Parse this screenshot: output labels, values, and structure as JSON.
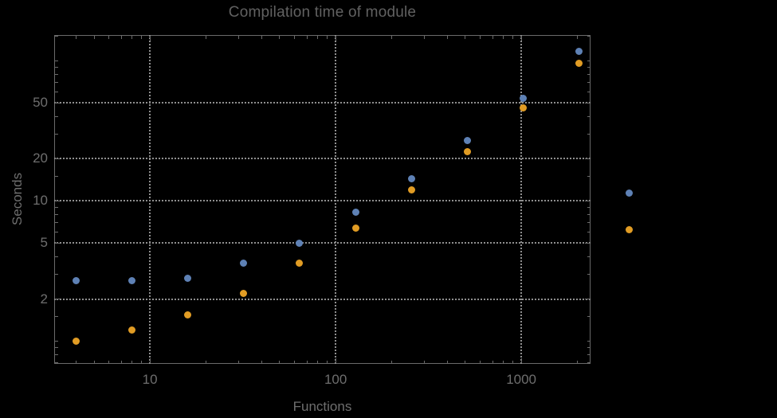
{
  "chart_data": {
    "type": "scatter",
    "title": "Compilation time of module",
    "xlabel": "Functions",
    "ylabel": "Seconds",
    "x_scale": "log",
    "y_scale": "log",
    "xlim": [
      3.05,
      2360
    ],
    "ylim": [
      0.69,
      152
    ],
    "grid": "dotted, at labeled major ticks only",
    "colors": {
      "background": "#000000",
      "frame": "#6a6a6a",
      "gridline": "#8f8f8f",
      "text": "#6e6e6e",
      "title_text": "#616161",
      "series_blue": "#5e81b5",
      "series_orange": "#e19c24"
    },
    "x_axis": {
      "major_ticks": [
        {
          "value": 10,
          "label": "10"
        },
        {
          "value": 100,
          "label": "100"
        },
        {
          "value": 1000,
          "label": "1000"
        }
      ],
      "minor_ticks": [
        4,
        5,
        6,
        7,
        8,
        9,
        20,
        30,
        40,
        50,
        60,
        70,
        80,
        90,
        200,
        300,
        400,
        500,
        600,
        700,
        800,
        900,
        2000
      ],
      "gridlines": [
        10,
        100,
        1000
      ]
    },
    "y_axis": {
      "major_ticks": [
        {
          "value": 2,
          "label": "2"
        },
        {
          "value": 5,
          "label": "5"
        },
        {
          "value": 10,
          "label": "10"
        },
        {
          "value": 20,
          "label": "20"
        },
        {
          "value": 50,
          "label": "50"
        }
      ],
      "minor_ticks": [
        0.7,
        0.8,
        0.9,
        1,
        1.5,
        3,
        4,
        6,
        7,
        8,
        9,
        15,
        30,
        40,
        60,
        70,
        80,
        90,
        100,
        150
      ],
      "gridlines": [
        2,
        5,
        10,
        20,
        50
      ]
    },
    "series": [
      {
        "name": "series-1-blue",
        "color": "#5e81b5",
        "x": [
          4,
          8,
          16,
          32,
          64,
          128,
          256,
          512,
          1024,
          2048
        ],
        "y": [
          2.7,
          2.7,
          2.8,
          3.6,
          5.0,
          8.3,
          14.4,
          27,
          54,
          117
        ]
      },
      {
        "name": "series-2-orange",
        "color": "#e19c24",
        "x": [
          4,
          8,
          16,
          32,
          64,
          128,
          256,
          512,
          1024,
          2048
        ],
        "y": [
          1.0,
          1.2,
          1.55,
          2.2,
          3.6,
          6.4,
          12,
          22.5,
          46,
          96
        ]
      }
    ],
    "legend": {
      "position": "right-of-plot",
      "labels_visible": false,
      "markers": [
        {
          "name": "legend-marker-blue",
          "color": "#5e81b5"
        },
        {
          "name": "legend-marker-orange",
          "color": "#e19c24"
        }
      ]
    }
  }
}
